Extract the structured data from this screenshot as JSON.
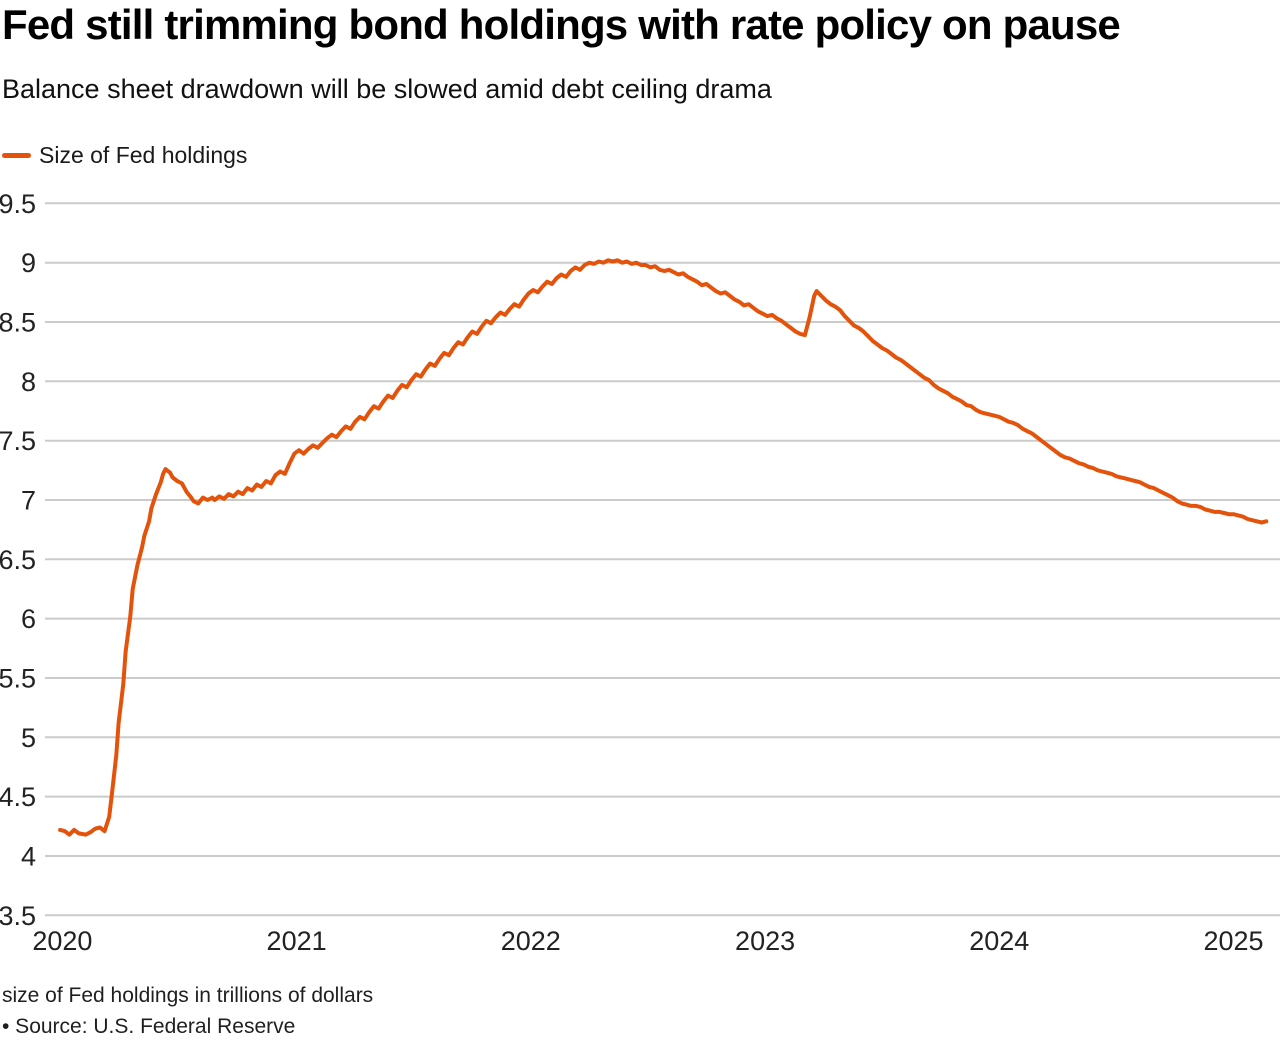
{
  "header": {
    "title": "Fed still trimming bond holdings with rate policy on pause",
    "subtitle": "Balance sheet drawdown will be slowed amid debt ceiling drama"
  },
  "legend": {
    "label": "Size of Fed holdings",
    "swatch_color": "#e4530b"
  },
  "footer": {
    "note": "size of Fed holdings in trillions of dollars",
    "source": "• Source: U.S. Federal Reserve"
  },
  "colors": {
    "line": "#e4530b",
    "gridline": "#cbcbcb",
    "tick_text": "#222222"
  },
  "chart_data": {
    "type": "line",
    "title": "Fed still trimming bond holdings with rate policy on pause",
    "subtitle": "Balance sheet drawdown will be slowed amid debt ceiling drama",
    "units": "trillions of dollars",
    "grid": true,
    "legend_position": "top-left",
    "xlim": [
      2019.926,
      2025.198
    ],
    "ylim": [
      3.5,
      9.5
    ],
    "x_ticks": [
      {
        "value": 2020,
        "label": "2020"
      },
      {
        "value": 2021,
        "label": "2021"
      },
      {
        "value": 2022,
        "label": "2022"
      },
      {
        "value": 2023,
        "label": "2023"
      },
      {
        "value": 2024,
        "label": "2024"
      },
      {
        "value": 2025,
        "label": "2025"
      }
    ],
    "y_ticks": [
      {
        "value": 9.5,
        "label": "9.5"
      },
      {
        "value": 9.0,
        "label": "9"
      },
      {
        "value": 8.5,
        "label": "8.5"
      },
      {
        "value": 8.0,
        "label": "8"
      },
      {
        "value": 7.5,
        "label": "7.5"
      },
      {
        "value": 7.0,
        "label": "7"
      },
      {
        "value": 6.5,
        "label": "6.5"
      },
      {
        "value": 6.0,
        "label": "6"
      },
      {
        "value": 5.5,
        "label": "5.5"
      },
      {
        "value": 5.0,
        "label": "5"
      },
      {
        "value": 4.5,
        "label": "4.5"
      },
      {
        "value": 4.0,
        "label": "4"
      },
      {
        "value": 3.5,
        "label": "3.5"
      }
    ],
    "series": [
      {
        "name": "Size of Fed holdings",
        "color": "#e4530b",
        "points": [
          [
            2019.99,
            4.22
          ],
          [
            2020.01,
            4.21
          ],
          [
            2020.03,
            4.18
          ],
          [
            2020.05,
            4.22
          ],
          [
            2020.07,
            4.19
          ],
          [
            2020.1,
            4.18
          ],
          [
            2020.12,
            4.2
          ],
          [
            2020.14,
            4.23
          ],
          [
            2020.16,
            4.24
          ],
          [
            2020.18,
            4.21
          ],
          [
            2020.2,
            4.33
          ],
          [
            2020.21,
            4.5
          ],
          [
            2020.23,
            4.85
          ],
          [
            2020.24,
            5.12
          ],
          [
            2020.26,
            5.45
          ],
          [
            2020.27,
            5.72
          ],
          [
            2020.29,
            6.02
          ],
          [
            2020.3,
            6.25
          ],
          [
            2020.32,
            6.45
          ],
          [
            2020.34,
            6.6
          ],
          [
            2020.35,
            6.7
          ],
          [
            2020.37,
            6.82
          ],
          [
            2020.38,
            6.93
          ],
          [
            2020.4,
            7.05
          ],
          [
            2020.42,
            7.15
          ],
          [
            2020.43,
            7.22
          ],
          [
            2020.44,
            7.26
          ],
          [
            2020.46,
            7.23
          ],
          [
            2020.47,
            7.19
          ],
          [
            2020.49,
            7.16
          ],
          [
            2020.51,
            7.14
          ],
          [
            2020.53,
            7.07
          ],
          [
            2020.55,
            7.02
          ],
          [
            2020.56,
            6.99
          ],
          [
            2020.58,
            6.97
          ],
          [
            2020.6,
            7.02
          ],
          [
            2020.62,
            7.0
          ],
          [
            2020.64,
            7.02
          ],
          [
            2020.65,
            7.0
          ],
          [
            2020.67,
            7.03
          ],
          [
            2020.69,
            7.01
          ],
          [
            2020.71,
            7.05
          ],
          [
            2020.73,
            7.03
          ],
          [
            2020.75,
            7.07
          ],
          [
            2020.77,
            7.05
          ],
          [
            2020.79,
            7.1
          ],
          [
            2020.81,
            7.08
          ],
          [
            2020.83,
            7.13
          ],
          [
            2020.85,
            7.11
          ],
          [
            2020.87,
            7.16
          ],
          [
            2020.89,
            7.14
          ],
          [
            2020.91,
            7.21
          ],
          [
            2020.93,
            7.24
          ],
          [
            2020.95,
            7.22
          ],
          [
            2020.97,
            7.31
          ],
          [
            2020.99,
            7.39
          ],
          [
            2021.01,
            7.42
          ],
          [
            2021.03,
            7.39
          ],
          [
            2021.05,
            7.43
          ],
          [
            2021.07,
            7.46
          ],
          [
            2021.09,
            7.44
          ],
          [
            2021.11,
            7.48
          ],
          [
            2021.13,
            7.52
          ],
          [
            2021.15,
            7.55
          ],
          [
            2021.17,
            7.53
          ],
          [
            2021.19,
            7.58
          ],
          [
            2021.21,
            7.62
          ],
          [
            2021.23,
            7.6
          ],
          [
            2021.25,
            7.66
          ],
          [
            2021.27,
            7.7
          ],
          [
            2021.29,
            7.68
          ],
          [
            2021.31,
            7.74
          ],
          [
            2021.33,
            7.79
          ],
          [
            2021.35,
            7.77
          ],
          [
            2021.37,
            7.83
          ],
          [
            2021.39,
            7.88
          ],
          [
            2021.41,
            7.86
          ],
          [
            2021.43,
            7.92
          ],
          [
            2021.45,
            7.97
          ],
          [
            2021.47,
            7.95
          ],
          [
            2021.49,
            8.01
          ],
          [
            2021.51,
            8.06
          ],
          [
            2021.53,
            8.04
          ],
          [
            2021.55,
            8.1
          ],
          [
            2021.57,
            8.15
          ],
          [
            2021.59,
            8.13
          ],
          [
            2021.61,
            8.19
          ],
          [
            2021.63,
            8.24
          ],
          [
            2021.65,
            8.22
          ],
          [
            2021.67,
            8.28
          ],
          [
            2021.69,
            8.33
          ],
          [
            2021.71,
            8.31
          ],
          [
            2021.73,
            8.37
          ],
          [
            2021.75,
            8.42
          ],
          [
            2021.77,
            8.4
          ],
          [
            2021.79,
            8.46
          ],
          [
            2021.81,
            8.51
          ],
          [
            2021.83,
            8.49
          ],
          [
            2021.85,
            8.54
          ],
          [
            2021.87,
            8.58
          ],
          [
            2021.89,
            8.56
          ],
          [
            2021.91,
            8.61
          ],
          [
            2021.93,
            8.65
          ],
          [
            2021.95,
            8.63
          ],
          [
            2021.97,
            8.69
          ],
          [
            2021.99,
            8.74
          ],
          [
            2022.01,
            8.77
          ],
          [
            2022.03,
            8.75
          ],
          [
            2022.05,
            8.8
          ],
          [
            2022.07,
            8.84
          ],
          [
            2022.09,
            8.82
          ],
          [
            2022.11,
            8.87
          ],
          [
            2022.13,
            8.9
          ],
          [
            2022.15,
            8.88
          ],
          [
            2022.17,
            8.93
          ],
          [
            2022.19,
            8.96
          ],
          [
            2022.21,
            8.94
          ],
          [
            2022.23,
            8.98
          ],
          [
            2022.25,
            9.0
          ],
          [
            2022.27,
            8.99
          ],
          [
            2022.29,
            9.01
          ],
          [
            2022.31,
            9.0
          ],
          [
            2022.33,
            9.02
          ],
          [
            2022.35,
            9.01
          ],
          [
            2022.37,
            9.02
          ],
          [
            2022.39,
            9.0
          ],
          [
            2022.41,
            9.01
          ],
          [
            2022.43,
            8.99
          ],
          [
            2022.45,
            9.0
          ],
          [
            2022.47,
            8.98
          ],
          [
            2022.49,
            8.98
          ],
          [
            2022.51,
            8.96
          ],
          [
            2022.53,
            8.97
          ],
          [
            2022.55,
            8.94
          ],
          [
            2022.57,
            8.93
          ],
          [
            2022.59,
            8.94
          ],
          [
            2022.61,
            8.92
          ],
          [
            2022.63,
            8.9
          ],
          [
            2022.65,
            8.91
          ],
          [
            2022.67,
            8.88
          ],
          [
            2022.69,
            8.86
          ],
          [
            2022.71,
            8.84
          ],
          [
            2022.73,
            8.81
          ],
          [
            2022.75,
            8.82
          ],
          [
            2022.77,
            8.79
          ],
          [
            2022.79,
            8.76
          ],
          [
            2022.81,
            8.74
          ],
          [
            2022.83,
            8.75
          ],
          [
            2022.85,
            8.72
          ],
          [
            2022.87,
            8.69
          ],
          [
            2022.89,
            8.67
          ],
          [
            2022.91,
            8.64
          ],
          [
            2022.93,
            8.65
          ],
          [
            2022.95,
            8.62
          ],
          [
            2022.97,
            8.59
          ],
          [
            2022.99,
            8.57
          ],
          [
            2023.01,
            8.55
          ],
          [
            2023.03,
            8.56
          ],
          [
            2023.05,
            8.53
          ],
          [
            2023.07,
            8.51
          ],
          [
            2023.09,
            8.48
          ],
          [
            2023.11,
            8.45
          ],
          [
            2023.13,
            8.42
          ],
          [
            2023.15,
            8.4
          ],
          [
            2023.17,
            8.39
          ],
          [
            2023.19,
            8.54
          ],
          [
            2023.21,
            8.72
          ],
          [
            2023.22,
            8.76
          ],
          [
            2023.24,
            8.72
          ],
          [
            2023.26,
            8.68
          ],
          [
            2023.28,
            8.65
          ],
          [
            2023.3,
            8.63
          ],
          [
            2023.32,
            8.6
          ],
          [
            2023.34,
            8.55
          ],
          [
            2023.36,
            8.51
          ],
          [
            2023.38,
            8.47
          ],
          [
            2023.4,
            8.45
          ],
          [
            2023.42,
            8.42
          ],
          [
            2023.44,
            8.38
          ],
          [
            2023.46,
            8.34
          ],
          [
            2023.48,
            8.31
          ],
          [
            2023.5,
            8.28
          ],
          [
            2023.52,
            8.26
          ],
          [
            2023.54,
            8.23
          ],
          [
            2023.56,
            8.2
          ],
          [
            2023.58,
            8.18
          ],
          [
            2023.6,
            8.15
          ],
          [
            2023.62,
            8.12
          ],
          [
            2023.64,
            8.09
          ],
          [
            2023.66,
            8.06
          ],
          [
            2023.68,
            8.03
          ],
          [
            2023.7,
            8.01
          ],
          [
            2023.72,
            7.97
          ],
          [
            2023.74,
            7.94
          ],
          [
            2023.76,
            7.92
          ],
          [
            2023.78,
            7.9
          ],
          [
            2023.8,
            7.87
          ],
          [
            2023.82,
            7.85
          ],
          [
            2023.84,
            7.83
          ],
          [
            2023.86,
            7.8
          ],
          [
            2023.88,
            7.79
          ],
          [
            2023.9,
            7.76
          ],
          [
            2023.92,
            7.74
          ],
          [
            2023.94,
            7.73
          ],
          [
            2023.96,
            7.72
          ],
          [
            2023.98,
            7.71
          ],
          [
            2024.0,
            7.7
          ],
          [
            2024.02,
            7.68
          ],
          [
            2024.04,
            7.66
          ],
          [
            2024.06,
            7.65
          ],
          [
            2024.08,
            7.63
          ],
          [
            2024.1,
            7.6
          ],
          [
            2024.12,
            7.58
          ],
          [
            2024.14,
            7.56
          ],
          [
            2024.16,
            7.53
          ],
          [
            2024.18,
            7.5
          ],
          [
            2024.2,
            7.47
          ],
          [
            2024.22,
            7.44
          ],
          [
            2024.24,
            7.41
          ],
          [
            2024.26,
            7.38
          ],
          [
            2024.28,
            7.36
          ],
          [
            2024.3,
            7.35
          ],
          [
            2024.32,
            7.33
          ],
          [
            2024.34,
            7.31
          ],
          [
            2024.36,
            7.3
          ],
          [
            2024.38,
            7.28
          ],
          [
            2024.4,
            7.27
          ],
          [
            2024.42,
            7.25
          ],
          [
            2024.44,
            7.24
          ],
          [
            2024.46,
            7.23
          ],
          [
            2024.48,
            7.22
          ],
          [
            2024.5,
            7.2
          ],
          [
            2024.52,
            7.19
          ],
          [
            2024.54,
            7.18
          ],
          [
            2024.56,
            7.17
          ],
          [
            2024.58,
            7.16
          ],
          [
            2024.6,
            7.15
          ],
          [
            2024.62,
            7.13
          ],
          [
            2024.64,
            7.11
          ],
          [
            2024.66,
            7.1
          ],
          [
            2024.68,
            7.08
          ],
          [
            2024.7,
            7.06
          ],
          [
            2024.72,
            7.04
          ],
          [
            2024.74,
            7.02
          ],
          [
            2024.76,
            6.99
          ],
          [
            2024.78,
            6.97
          ],
          [
            2024.8,
            6.96
          ],
          [
            2024.82,
            6.95
          ],
          [
            2024.84,
            6.95
          ],
          [
            2024.86,
            6.94
          ],
          [
            2024.88,
            6.92
          ],
          [
            2024.9,
            6.91
          ],
          [
            2024.92,
            6.9
          ],
          [
            2024.94,
            6.9
          ],
          [
            2024.96,
            6.89
          ],
          [
            2024.98,
            6.88
          ],
          [
            2025.0,
            6.88
          ],
          [
            2025.02,
            6.87
          ],
          [
            2025.04,
            6.86
          ],
          [
            2025.06,
            6.84
          ],
          [
            2025.08,
            6.83
          ],
          [
            2025.1,
            6.82
          ],
          [
            2025.12,
            6.81
          ],
          [
            2025.14,
            6.82
          ]
        ]
      }
    ]
  }
}
